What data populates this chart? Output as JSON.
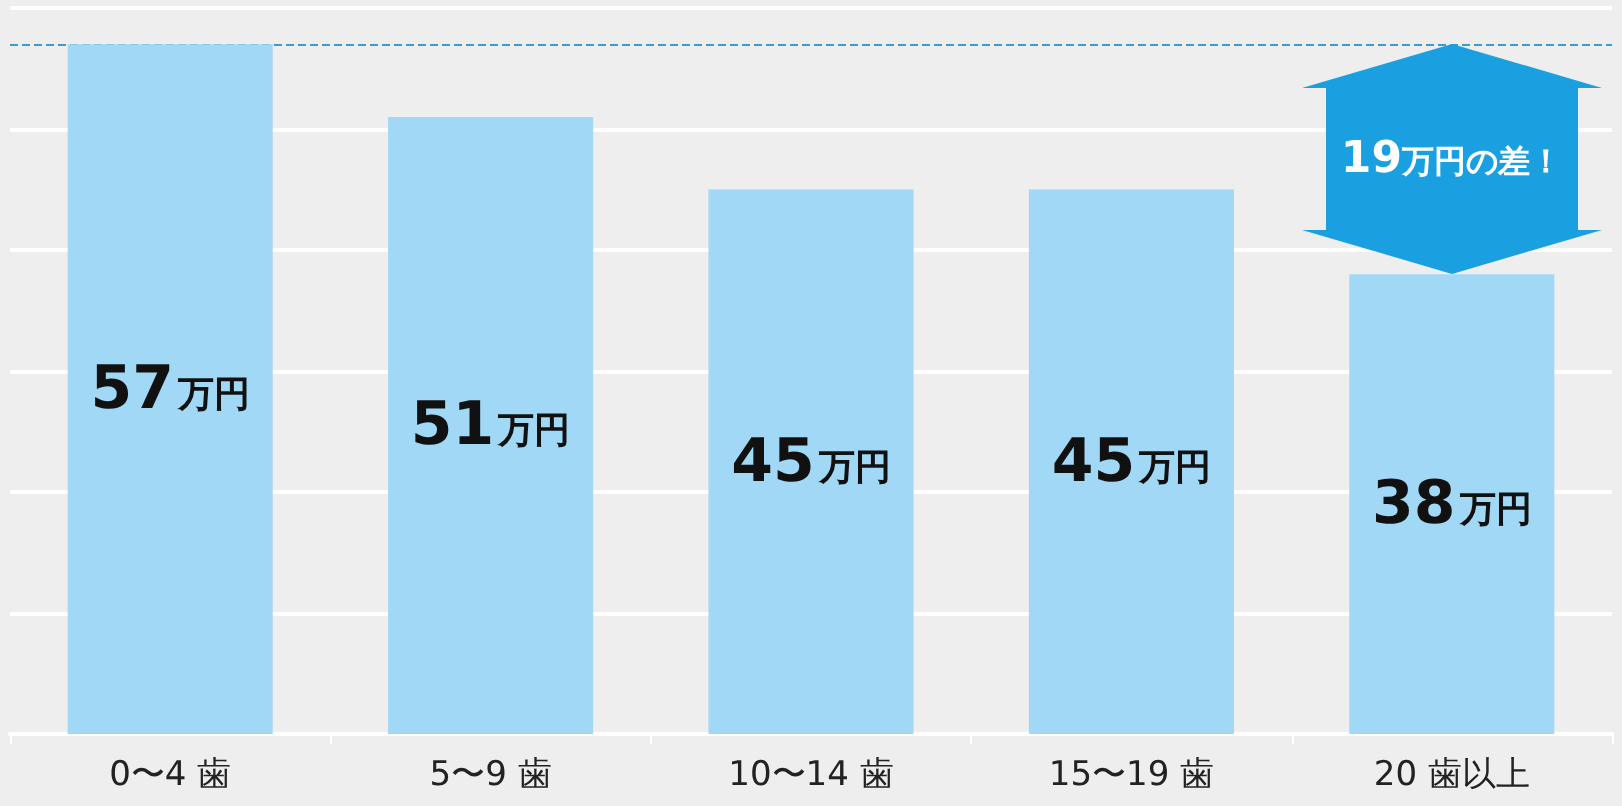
{
  "chart_data": {
    "type": "bar",
    "categories": [
      "0〜4 歯",
      "5〜9 歯",
      "10〜14 歯",
      "15〜19 歯",
      "20 歯以上"
    ],
    "values": [
      57,
      51,
      45,
      45,
      38
    ],
    "value_labels": [
      "57万円",
      "51万円",
      "45万円",
      "45万円",
      "38万円"
    ],
    "color": "#a0d8f5",
    "ylim": [
      0,
      60
    ],
    "yticks": [
      {
        "value": 0,
        "label": null
      },
      {
        "value": 10,
        "label": null
      },
      {
        "value": 20,
        "label": null
      },
      {
        "value": 30,
        "label": null
      },
      {
        "value": 40,
        "label": null
      },
      {
        "value": 50,
        "label": null
      },
      {
        "value": 60,
        "label": null
      }
    ],
    "tick_labels": "x",
    "grid": "y",
    "ref_lines": [
      {
        "axis": "y",
        "value": 57,
        "color": "#3a9bd5",
        "line_style": "dashed"
      }
    ],
    "annotations": [
      "19万円の差！"
    ]
  }
}
